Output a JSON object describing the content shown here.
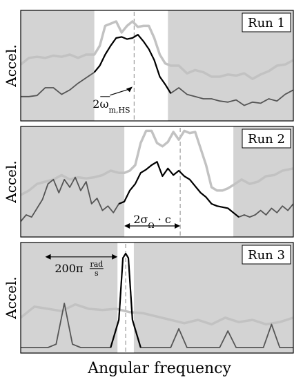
{
  "figure": {
    "xlabel": "Angular frequency",
    "colors": {
      "background_shade": "#d3d3d3",
      "reference_curve": "#c2c2c2",
      "measured_outside": "#555555",
      "measured_inside": "#000000",
      "marker_line": "#888888"
    }
  },
  "chart_data": [
    {
      "type": "line",
      "title": "Run 1",
      "ylabel": "Accel.",
      "xlim": [
        0,
        1
      ],
      "ylim": [
        0,
        1
      ],
      "grid": false,
      "shaded_outside": [
        0.27,
        0.54
      ],
      "marker_x": 0.416,
      "annotation": {
        "text": "2ω̄m,HS",
        "main": "2ω",
        "sub": "m,HS",
        "x": 0.34,
        "y": 0.12,
        "arrow_to": [
          0.41,
          0.31
        ]
      },
      "series": [
        {
          "x": [
            0.0,
            0.03,
            0.06,
            0.09,
            0.12,
            0.15,
            0.18,
            0.21,
            0.24,
            0.27,
            0.29,
            0.31,
            0.33,
            0.35,
            0.37,
            0.39,
            0.41,
            0.43,
            0.45,
            0.47,
            0.49,
            0.51,
            0.53,
            0.55,
            0.58,
            0.61,
            0.64,
            0.67,
            0.7,
            0.73,
            0.76,
            0.79,
            0.82,
            0.85,
            0.88,
            0.91,
            0.94,
            0.97,
            1.0
          ],
          "values": [
            0.51,
            0.57,
            0.58,
            0.57,
            0.59,
            0.58,
            0.6,
            0.57,
            0.6,
            0.6,
            0.68,
            0.86,
            0.88,
            0.9,
            0.8,
            0.86,
            0.9,
            0.85,
            0.86,
            0.86,
            0.75,
            0.6,
            0.52,
            0.5,
            0.5,
            0.43,
            0.46,
            0.44,
            0.4,
            0.4,
            0.42,
            0.41,
            0.43,
            0.38,
            0.42,
            0.45,
            0.5,
            0.51,
            0.55
          ]
        },
        {
          "x": [
            0.0,
            0.03,
            0.06,
            0.09,
            0.12,
            0.15,
            0.18,
            0.21,
            0.24,
            0.27,
            0.29,
            0.31,
            0.33,
            0.35,
            0.37,
            0.39,
            0.41,
            0.43,
            0.45,
            0.47,
            0.49,
            0.51,
            0.53,
            0.55,
            0.58,
            0.61,
            0.64,
            0.67,
            0.7,
            0.73,
            0.76,
            0.79,
            0.82,
            0.85,
            0.88,
            0.91,
            0.94,
            0.97,
            1.0
          ],
          "values": [
            0.22,
            0.22,
            0.23,
            0.3,
            0.3,
            0.24,
            0.28,
            0.34,
            0.39,
            0.44,
            0.5,
            0.6,
            0.68,
            0.75,
            0.76,
            0.74,
            0.75,
            0.78,
            0.72,
            0.65,
            0.55,
            0.4,
            0.33,
            0.25,
            0.3,
            0.24,
            0.22,
            0.2,
            0.2,
            0.18,
            0.17,
            0.19,
            0.14,
            0.17,
            0.16,
            0.2,
            0.18,
            0.24,
            0.28
          ]
        }
      ]
    },
    {
      "type": "line",
      "title": "Run 2",
      "ylabel": "Accel.",
      "xlim": [
        0,
        1
      ],
      "ylim": [
        0,
        1
      ],
      "grid": false,
      "shaded_outside": [
        0.38,
        0.78
      ],
      "marker_x": 0.585,
      "annotation": {
        "text": "2σΩ · c",
        "main": "2σ",
        "sub": "Ω",
        "after": " · c",
        "arrow_from": 0.38,
        "arrow_to": 0.585,
        "y": 0.1
      },
      "series": [
        {
          "x": [
            0.0,
            0.03,
            0.06,
            0.09,
            0.12,
            0.15,
            0.18,
            0.21,
            0.24,
            0.27,
            0.3,
            0.33,
            0.36,
            0.38,
            0.4,
            0.42,
            0.44,
            0.46,
            0.48,
            0.5,
            0.52,
            0.54,
            0.56,
            0.58,
            0.6,
            0.62,
            0.64,
            0.66,
            0.68,
            0.7,
            0.72,
            0.74,
            0.76,
            0.78,
            0.81,
            0.84,
            0.87,
            0.9,
            0.93,
            0.96,
            1.0
          ],
          "values": [
            0.38,
            0.42,
            0.48,
            0.5,
            0.52,
            0.56,
            0.52,
            0.54,
            0.53,
            0.54,
            0.56,
            0.6,
            0.58,
            0.58,
            0.6,
            0.65,
            0.85,
            0.96,
            0.96,
            0.85,
            0.82,
            0.86,
            0.95,
            0.88,
            0.96,
            0.94,
            0.95,
            0.8,
            0.65,
            0.45,
            0.42,
            0.42,
            0.44,
            0.47,
            0.52,
            0.48,
            0.5,
            0.55,
            0.56,
            0.6,
            0.62
          ]
        },
        {
          "x": [
            0.0,
            0.02,
            0.04,
            0.06,
            0.08,
            0.1,
            0.12,
            0.14,
            0.16,
            0.18,
            0.2,
            0.22,
            0.24,
            0.26,
            0.28,
            0.3,
            0.32,
            0.34,
            0.36,
            0.38,
            0.4,
            0.42,
            0.44,
            0.46,
            0.48,
            0.5,
            0.52,
            0.54,
            0.56,
            0.58,
            0.6,
            0.62,
            0.64,
            0.66,
            0.68,
            0.7,
            0.72,
            0.74,
            0.76,
            0.78,
            0.8,
            0.82,
            0.84,
            0.86,
            0.88,
            0.9,
            0.92,
            0.94,
            0.96,
            0.98,
            1.0
          ],
          "values": [
            0.14,
            0.2,
            0.18,
            0.26,
            0.34,
            0.48,
            0.52,
            0.4,
            0.52,
            0.45,
            0.54,
            0.42,
            0.5,
            0.3,
            0.35,
            0.24,
            0.28,
            0.22,
            0.3,
            0.32,
            0.42,
            0.48,
            0.58,
            0.61,
            0.65,
            0.68,
            0.55,
            0.62,
            0.56,
            0.6,
            0.55,
            0.52,
            0.46,
            0.4,
            0.36,
            0.3,
            0.28,
            0.27,
            0.26,
            0.22,
            0.18,
            0.2,
            0.18,
            0.2,
            0.24,
            0.2,
            0.26,
            0.22,
            0.28,
            0.24,
            0.3
          ]
        }
      ]
    },
    {
      "type": "line",
      "title": "Run 3",
      "ylabel": "Accel.",
      "xlim": [
        0,
        1
      ],
      "ylim": [
        0,
        1
      ],
      "grid": false,
      "shaded_outside": [
        0.355,
        0.415
      ],
      "marker_x": 0.385,
      "annotation": {
        "text": "200π rad/s",
        "main": "200π",
        "num": "rad",
        "den": "s",
        "arrow_from": 0.09,
        "arrow_to": 0.355,
        "y": 0.87
      },
      "series": [
        {
          "x": [
            0.0,
            0.05,
            0.1,
            0.15,
            0.2,
            0.25,
            0.3,
            0.35,
            0.4,
            0.45,
            0.5,
            0.55,
            0.6,
            0.65,
            0.7,
            0.75,
            0.8,
            0.85,
            0.9,
            0.95,
            1.0
          ],
          "values": [
            0.32,
            0.42,
            0.4,
            0.38,
            0.44,
            0.4,
            0.39,
            0.4,
            0.37,
            0.36,
            0.33,
            0.3,
            0.27,
            0.3,
            0.26,
            0.32,
            0.28,
            0.3,
            0.26,
            0.28,
            0.32
          ]
        },
        {
          "x": [
            0.0,
            0.1,
            0.13,
            0.16,
            0.19,
            0.22,
            0.3,
            0.33,
            0.36,
            0.375,
            0.385,
            0.395,
            0.41,
            0.44,
            0.52,
            0.55,
            0.58,
            0.61,
            0.7,
            0.73,
            0.76,
            0.79,
            0.86,
            0.89,
            0.92,
            0.95,
            1.0
          ],
          "values": [
            0.05,
            0.05,
            0.08,
            0.45,
            0.08,
            0.05,
            0.05,
            0.05,
            0.3,
            0.86,
            0.9,
            0.86,
            0.3,
            0.05,
            0.05,
            0.05,
            0.22,
            0.05,
            0.05,
            0.05,
            0.2,
            0.05,
            0.05,
            0.05,
            0.26,
            0.05,
            0.05
          ]
        }
      ]
    }
  ]
}
